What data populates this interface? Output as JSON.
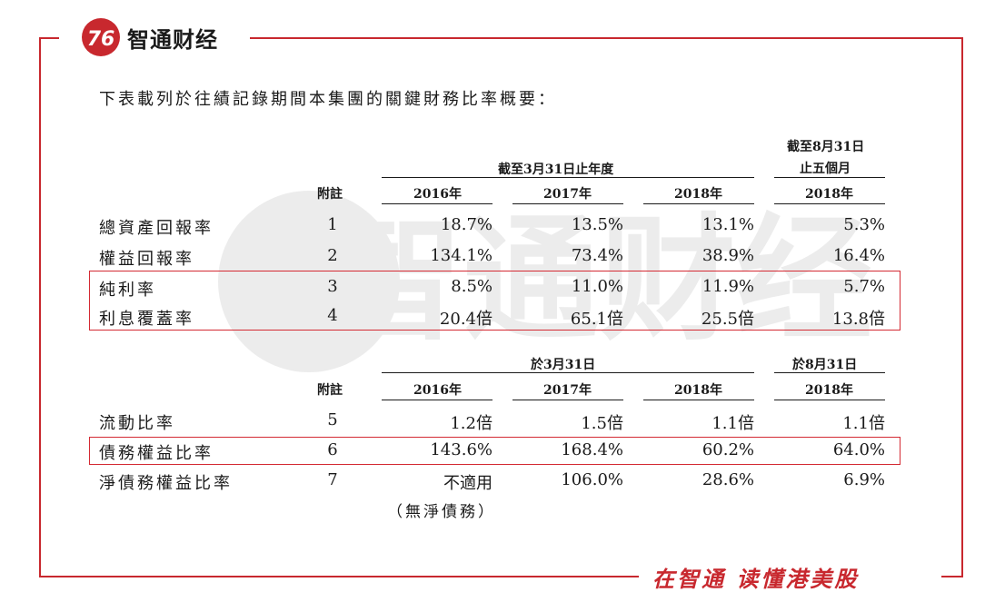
{
  "brand": {
    "name": "智通财经",
    "slogan": "在智通 读懂港美股",
    "accent_color": "#c8282e"
  },
  "intro": "下表載列於往績記錄期間本集團的關鍵財務比率概要：",
  "table1": {
    "group_header": "截至3月31日止年度",
    "right_header_line1": "截至8月31日",
    "right_header_line2": "止五個月",
    "note_header": "附註",
    "years": [
      "2016年",
      "2017年",
      "2018年",
      "2018年"
    ],
    "rows": [
      {
        "label": "總資產回報率",
        "note": "1",
        "values": [
          "18.7%",
          "13.5%",
          "13.1%",
          "5.3%"
        ]
      },
      {
        "label": "權益回報率",
        "note": "2",
        "values": [
          "134.1%",
          "73.4%",
          "38.9%",
          "16.4%"
        ]
      },
      {
        "label": "純利率",
        "note": "3",
        "values": [
          "8.5%",
          "11.0%",
          "11.9%",
          "5.7%"
        ]
      },
      {
        "label": "利息覆蓋率",
        "note": "4",
        "values": [
          "20.4倍",
          "65.1倍",
          "25.5倍",
          "13.8倍"
        ]
      }
    ]
  },
  "table2": {
    "group_header": "於3月31日",
    "right_header": "於8月31日",
    "note_header": "附註",
    "years": [
      "2016年",
      "2017年",
      "2018年",
      "2018年"
    ],
    "rows": [
      {
        "label": "流動比率",
        "note": "5",
        "values": [
          "1.2倍",
          "1.5倍",
          "1.1倍",
          "1.1倍"
        ]
      },
      {
        "label": "債務權益比率",
        "note": "6",
        "values": [
          "143.6%",
          "168.4%",
          "60.2%",
          "64.0%"
        ]
      },
      {
        "label": "淨債務權益比率",
        "note": "7",
        "values": [
          "不適用",
          "106.0%",
          "28.6%",
          "6.9%"
        ]
      }
    ],
    "footnote": "（無淨債務）"
  }
}
